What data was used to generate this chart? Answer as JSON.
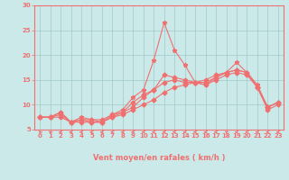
{
  "xlabel": "Vent moyen/en rafales ( km/h )",
  "background_color": "#cbe9e9",
  "grid_color": "#a0c8c8",
  "line_color": "#f07070",
  "xlim": [
    -0.5,
    23.5
  ],
  "ylim": [
    5,
    30
  ],
  "yticks": [
    5,
    10,
    15,
    20,
    25,
    30
  ],
  "xticks": [
    0,
    1,
    2,
    3,
    4,
    5,
    6,
    7,
    8,
    9,
    10,
    11,
    12,
    13,
    14,
    15,
    16,
    17,
    18,
    19,
    20,
    21,
    22,
    23
  ],
  "x": [
    0,
    1,
    2,
    3,
    4,
    5,
    6,
    7,
    8,
    9,
    10,
    11,
    12,
    13,
    14,
    15,
    16,
    17,
    18,
    19,
    20,
    21,
    22,
    23
  ],
  "line1_y": [
    7.5,
    7.5,
    8.5,
    6.5,
    7.5,
    7.0,
    6.5,
    8.0,
    9.0,
    11.5,
    13.0,
    19.0,
    26.5,
    21.0,
    18.0,
    14.5,
    14.0,
    15.5,
    16.5,
    18.5,
    16.5,
    14.0,
    9.5,
    10.5
  ],
  "line2_y": [
    7.5,
    7.5,
    8.5,
    6.5,
    7.0,
    6.5,
    6.5,
    7.5,
    8.5,
    10.5,
    12.0,
    13.0,
    16.0,
    15.5,
    15.0,
    14.5,
    14.0,
    15.0,
    16.0,
    16.5,
    16.0,
    13.5,
    9.0,
    10.0
  ],
  "line3_y": [
    7.5,
    7.5,
    8.0,
    6.5,
    7.0,
    7.0,
    7.0,
    8.0,
    8.5,
    9.5,
    11.5,
    13.0,
    14.5,
    15.0,
    14.5,
    14.5,
    14.5,
    15.5,
    16.5,
    17.0,
    16.5,
    13.5,
    9.5,
    10.5
  ],
  "line4_y": [
    7.5,
    7.5,
    7.5,
    6.5,
    6.5,
    6.5,
    6.5,
    7.5,
    8.0,
    9.0,
    10.0,
    11.0,
    12.5,
    13.5,
    14.0,
    14.5,
    15.0,
    16.0,
    16.5,
    17.0,
    16.5,
    13.5,
    9.5,
    10.5
  ],
  "arrow_angles": [
    225,
    225,
    270,
    270,
    270,
    270,
    270,
    270,
    270,
    270,
    270,
    270,
    270,
    270,
    270,
    270,
    270,
    270,
    225,
    270,
    270,
    270,
    270,
    270
  ]
}
